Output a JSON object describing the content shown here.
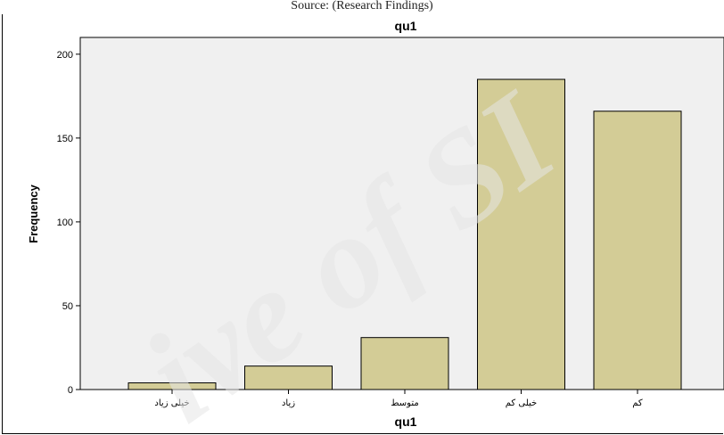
{
  "header": {
    "source_text": "Source: (Research Findings)"
  },
  "chart_data": {
    "type": "bar",
    "title": "qu1",
    "xlabel": "qu1",
    "ylabel": "Frequency",
    "categories": [
      "خیلی زیاد",
      "زیاد",
      "متوسط",
      "خیلی کم",
      "کم"
    ],
    "values": [
      4,
      14,
      31,
      185,
      166
    ],
    "ylim": [
      0,
      210
    ],
    "yticks": [
      0,
      50,
      100,
      150,
      200
    ],
    "grid": false,
    "legend": "none",
    "colors": {
      "bar_fill": "#d3cc96",
      "bar_stroke": "#000000",
      "plot_bg": "#f0f0f0"
    }
  }
}
